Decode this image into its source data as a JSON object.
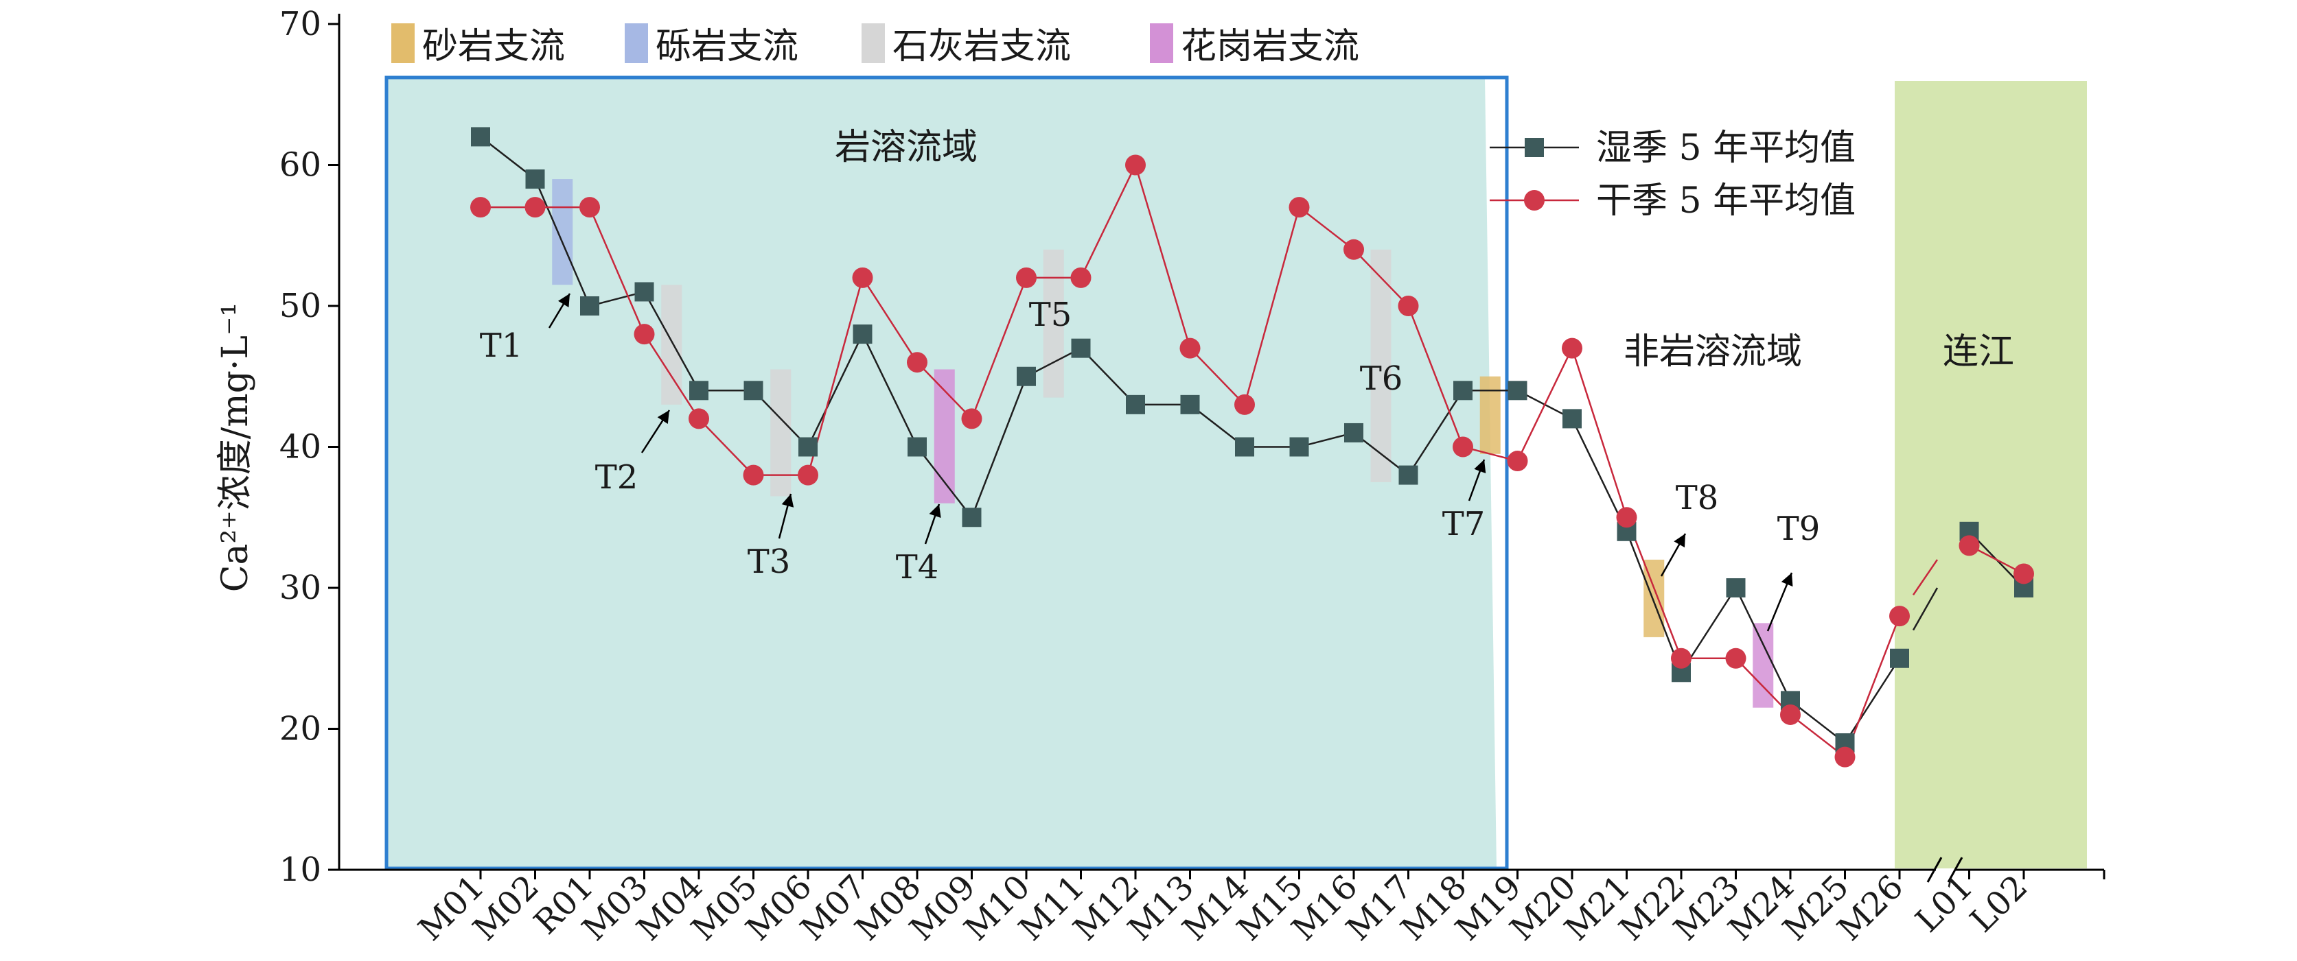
{
  "chart_data": {
    "type": "line",
    "ylabel": "Ca²⁺浓度/mg·L⁻¹",
    "ylim": [
      10,
      70
    ],
    "yticks": [
      10,
      20,
      30,
      40,
      50,
      60,
      70
    ],
    "categories": [
      "M01",
      "M02",
      "R01",
      "M03",
      "M04",
      "M05",
      "M06",
      "M07",
      "M08",
      "M09",
      "M10",
      "M11",
      "M12",
      "M13",
      "M14",
      "M15",
      "M16",
      "M17",
      "M18",
      "M19",
      "M20",
      "M21",
      "M22",
      "M23",
      "M24",
      "M25",
      "M26",
      "L01",
      "L02"
    ],
    "series": [
      {
        "name": "湿季 5 年平均值",
        "color": "#3d5a5b",
        "line_color": "#1f1f1f",
        "marker": "square",
        "segments": [
          {
            "from": 0,
            "values": [
              62,
              59,
              50,
              51,
              44,
              44,
              40,
              48,
              40,
              35,
              45,
              47,
              43,
              43,
              40,
              40,
              41,
              38,
              44,
              44,
              42,
              34,
              24,
              30,
              22,
              19,
              25
            ]
          },
          {
            "from": 27,
            "values": [
              34,
              30
            ]
          }
        ]
      },
      {
        "name": "干季 5 年平均值",
        "color": "#d0394a",
        "line_color": "#c8283c",
        "marker": "circle",
        "segments": [
          {
            "from": 0,
            "values": [
              57,
              57,
              57,
              48,
              42,
              38,
              38,
              52,
              46,
              42,
              52,
              52,
              60,
              47,
              43,
              57,
              54,
              50,
              40,
              39,
              47,
              35,
              25,
              25,
              21,
              18,
              28
            ]
          },
          {
            "from": 27,
            "values": [
              33,
              31
            ]
          }
        ]
      }
    ],
    "regions": [
      {
        "label": "岩溶流域",
        "color": "#cce9e6"
      },
      {
        "label": "非岩溶流域",
        "color": "#ffffff"
      },
      {
        "label": "连江",
        "color": "#d5e6b0"
      }
    ],
    "tributary_legend": [
      {
        "label": "砂岩支流",
        "color": "#e2bc6c"
      },
      {
        "label": "砾岩支流",
        "color": "#a6b8e4"
      },
      {
        "label": "石灰岩支流",
        "color": "#d6d6d6"
      },
      {
        "label": "花岗岩支流",
        "color": "#d391d6"
      }
    ],
    "tributaries": [
      {
        "label": "T1",
        "type": "砾岩支流",
        "between": [
          "M02",
          "R01"
        ],
        "range": [
          51.5,
          59
        ]
      },
      {
        "label": "T2",
        "type": "石灰岩支流",
        "between": [
          "M03",
          "M04"
        ],
        "range": [
          43,
          51.5
        ]
      },
      {
        "label": "T3",
        "type": "石灰岩支流",
        "between": [
          "M05",
          "M06"
        ],
        "range": [
          36.5,
          45.5
        ]
      },
      {
        "label": "T4",
        "type": "花岗岩支流",
        "between": [
          "M08",
          "M09"
        ],
        "range": [
          36,
          45.5
        ]
      },
      {
        "label": "T5",
        "type": "石灰岩支流",
        "between": [
          "M10",
          "M11"
        ],
        "range": [
          43.5,
          54
        ]
      },
      {
        "label": "T6",
        "type": "石灰岩支流",
        "between": [
          "M17"
        ],
        "range": [
          37.5,
          54
        ]
      },
      {
        "label": "T7",
        "type": "砂岩支流",
        "between": [
          "M18",
          "M19"
        ],
        "range": [
          39.5,
          45
        ]
      },
      {
        "label": "T8",
        "type": "砂岩支流",
        "between": [
          "M21",
          "M22"
        ],
        "range": [
          26.5,
          32
        ]
      },
      {
        "label": "T9",
        "type": "花岗岩支流",
        "between": [
          "M23",
          "M24"
        ],
        "range": [
          21.5,
          27.5
        ]
      }
    ]
  }
}
